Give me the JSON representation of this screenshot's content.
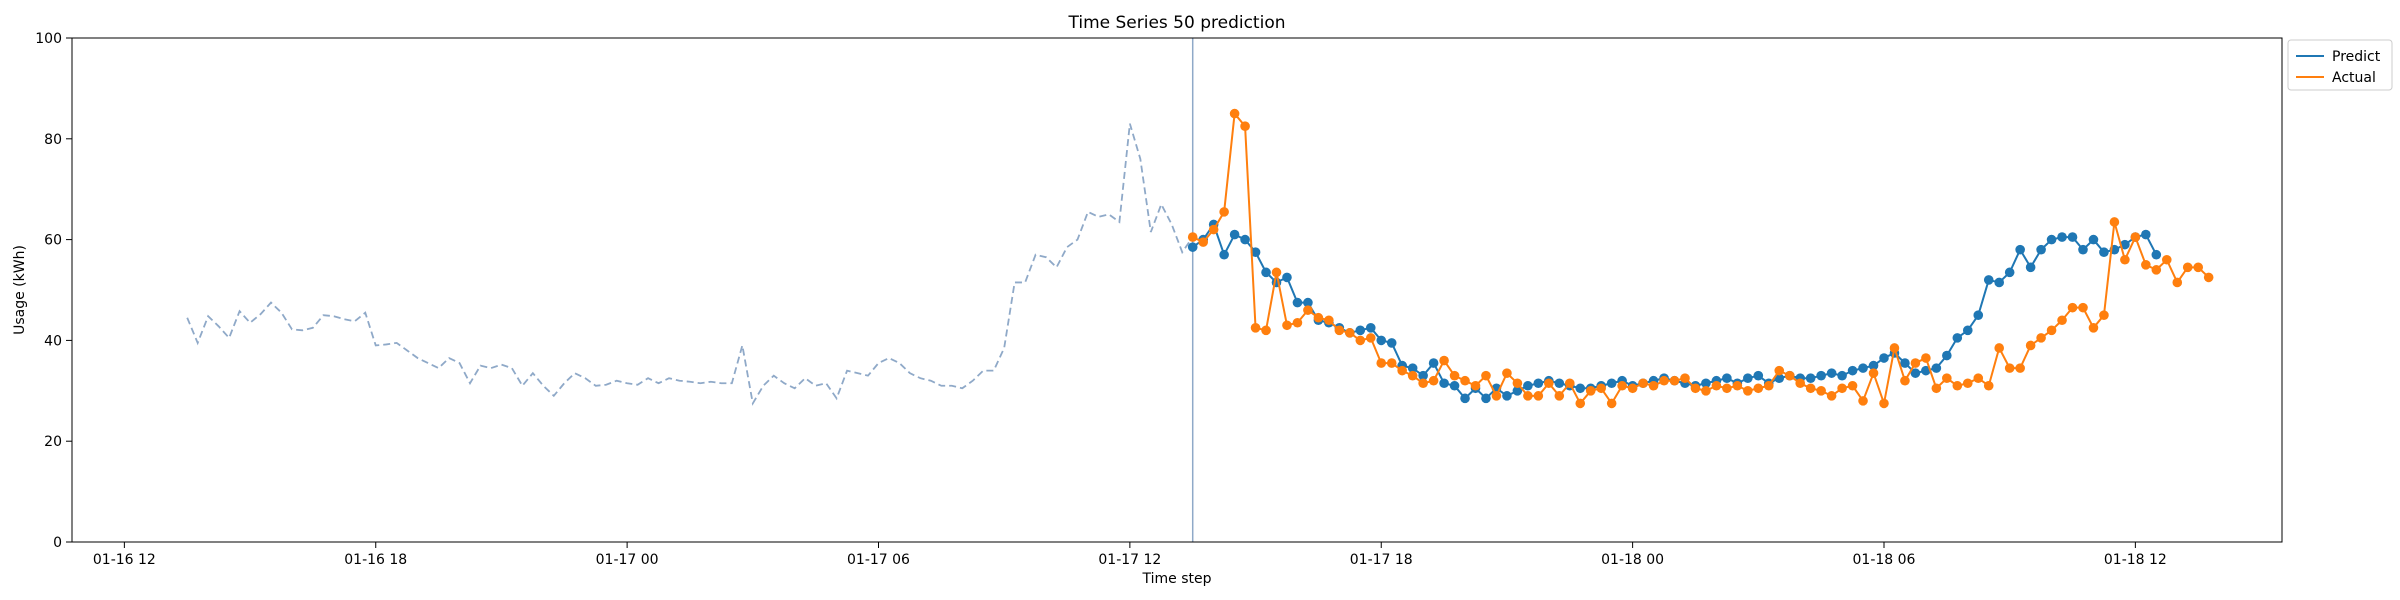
{
  "chart_data": {
    "type": "line",
    "title": "Time Series 50 prediction",
    "xlabel": "Time step",
    "ylabel": "Usage (kWh)",
    "ylim": [
      0,
      100
    ],
    "yticks": [
      0,
      20,
      40,
      60,
      80,
      100
    ],
    "x_axis_type": "datetime",
    "xlim": [
      "2024-01-16T10:45",
      "2024-01-18T15:30"
    ],
    "xticks": [
      {
        "t": "2024-01-16T12:00",
        "label": "01-16 12"
      },
      {
        "t": "2024-01-16T18:00",
        "label": "01-16 18"
      },
      {
        "t": "2024-01-17T00:00",
        "label": "01-17 00"
      },
      {
        "t": "2024-01-17T06:00",
        "label": "01-17 06"
      },
      {
        "t": "2024-01-17T12:00",
        "label": "01-17 12"
      },
      {
        "t": "2024-01-17T18:00",
        "label": "01-17 18"
      },
      {
        "t": "2024-01-18T00:00",
        "label": "01-18 00"
      },
      {
        "t": "2024-01-18T06:00",
        "label": "01-18 06"
      },
      {
        "t": "2024-01-18T12:00",
        "label": "01-18 12"
      }
    ],
    "grid": false,
    "legend": "upper-right-outside",
    "split_time": "2024-01-17T13:30",
    "history": {
      "start": "2024-01-16T13:30",
      "interval_minutes": 15,
      "color": "#8fa9c8",
      "style": "dashed",
      "values": [
        44.5,
        39.5,
        44.8,
        42.8,
        40.5,
        45.8,
        43.5,
        45.2,
        47.5,
        45.5,
        42.2,
        42.0,
        42.5,
        45.0,
        44.8,
        44.2,
        43.8,
        45.5,
        39.0,
        39.2,
        39.5,
        38.0,
        36.5,
        35.5,
        34.5,
        36.5,
        35.5,
        31.5,
        35.0,
        34.5,
        35.2,
        34.5,
        31.0,
        33.5,
        31.0,
        29.0,
        31.5,
        33.5,
        32.5,
        31.0,
        31.2,
        32.0,
        31.5,
        31.2,
        32.5,
        31.5,
        32.5,
        32.0,
        31.8,
        31.5,
        31.8,
        31.5,
        31.5,
        39.0,
        27.5,
        31.0,
        33.0,
        31.5,
        30.5,
        32.5,
        31.0,
        31.5,
        28.5,
        34.0,
        33.5,
        33.0,
        35.5,
        36.5,
        35.5,
        33.5,
        32.5,
        32.0,
        31.0,
        31.0,
        30.5,
        32.0,
        34.0,
        34.0,
        38.5,
        51.5,
        51.5,
        57.0,
        56.5,
        54.5,
        58.5,
        60.0,
        65.5,
        64.5,
        65.0,
        63.5,
        83.0,
        76.0,
        61.5,
        67.0,
        63.0,
        57.5,
        60.5
      ]
    },
    "forecast_start": "2024-01-17T13:30",
    "forecast_interval_minutes": 15,
    "series": [
      {
        "name": "Predict",
        "color": "#1f77b4",
        "values": [
          58.5,
          60.0,
          63.0,
          57.0,
          61.0,
          60.0,
          57.5,
          53.5,
          51.5,
          52.5,
          47.5,
          47.5,
          44.0,
          43.5,
          42.5,
          41.5,
          42.0,
          42.5,
          40.0,
          39.5,
          35.0,
          34.5,
          33.0,
          35.5,
          31.5,
          31.0,
          28.5,
          30.5,
          28.5,
          30.5,
          29.0,
          30.0,
          31.0,
          31.5,
          32.0,
          31.5,
          31.0,
          30.5,
          30.5,
          31.0,
          31.5,
          32.0,
          31.0,
          31.5,
          32.0,
          32.5,
          32.0,
          31.5,
          31.0,
          31.5,
          32.0,
          32.5,
          31.5,
          32.5,
          33.0,
          31.5,
          32.5,
          33.0,
          32.5,
          32.5,
          33.0,
          33.5,
          33.0,
          34.0,
          34.5,
          35.0,
          36.5,
          37.5,
          35.5,
          33.5,
          34.0,
          34.5,
          37.0,
          40.5,
          42.0,
          45.0,
          52.0,
          51.5,
          53.5,
          58.0,
          54.5,
          58.0,
          60.0,
          60.5,
          60.5,
          58.0,
          60.0,
          57.5,
          58.0,
          59.0,
          60.5,
          61.0,
          57.0
        ]
      },
      {
        "name": "Actual",
        "color": "#ff7f0e",
        "values": [
          60.5,
          59.5,
          62.0,
          65.5,
          85.0,
          82.5,
          42.5,
          42.0,
          53.5,
          43.0,
          43.5,
          46.0,
          44.5,
          44.0,
          42.0,
          41.5,
          40.0,
          40.5,
          35.5,
          35.5,
          34.0,
          33.0,
          31.5,
          32.0,
          36.0,
          33.0,
          32.0,
          31.0,
          33.0,
          29.0,
          33.5,
          31.5,
          29.0,
          29.0,
          31.5,
          29.0,
          31.5,
          27.5,
          30.0,
          30.5,
          27.5,
          31.0,
          30.5,
          31.5,
          31.0,
          32.0,
          32.0,
          32.5,
          30.5,
          30.0,
          31.0,
          30.5,
          31.0,
          30.0,
          30.5,
          31.0,
          34.0,
          33.0,
          31.5,
          30.5,
          30.0,
          29.0,
          30.5,
          31.0,
          28.0,
          33.5,
          27.5,
          38.5,
          32.0,
          35.5,
          36.5,
          30.5,
          32.5,
          31.0,
          31.5,
          32.5,
          31.0,
          38.5,
          34.5,
          34.5,
          39.0,
          40.5,
          42.0,
          44.0,
          46.5,
          46.5,
          42.5,
          45.0,
          63.5,
          56.0,
          60.5,
          55.0,
          54.0,
          56.0,
          51.5,
          54.5,
          54.5,
          52.5
        ]
      }
    ]
  }
}
